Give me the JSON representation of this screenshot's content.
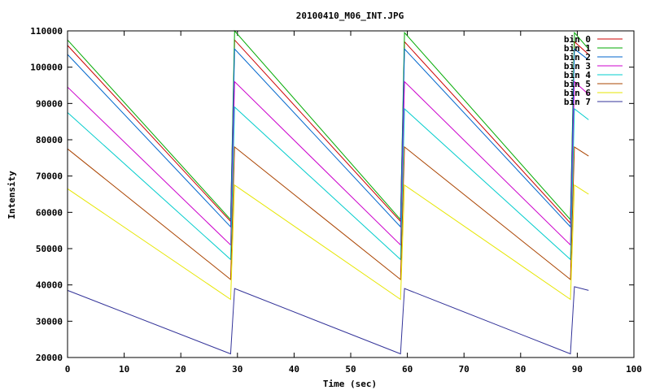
{
  "chart_data": {
    "type": "line",
    "title": "20100410_M06_INT.JPG",
    "xlabel": "Time (sec)",
    "ylabel": "Intensity",
    "xlim": [
      0,
      100
    ],
    "ylim": [
      20000,
      110000
    ],
    "xticks": [
      0,
      10,
      20,
      30,
      40,
      50,
      60,
      70,
      80,
      90,
      100
    ],
    "yticks": [
      20000,
      30000,
      40000,
      50000,
      60000,
      70000,
      80000,
      90000,
      100000,
      110000
    ],
    "xtick_labels": [
      "0",
      "10",
      "20",
      "30",
      "40",
      "50",
      "60",
      "70",
      "80",
      "90",
      "100"
    ],
    "ytick_labels": [
      "20000",
      "30000",
      "40000",
      "50000",
      "60000",
      "70000",
      "80000",
      "90000",
      "100000",
      "110000"
    ],
    "grid": false,
    "legend_position": "top-right",
    "series": [
      {
        "name": "bin 0",
        "color": "#cc0000",
        "x": [
          0,
          28.8,
          29.5,
          58.8,
          59.5,
          88.8,
          89.5,
          92
        ],
        "y": [
          106000,
          57500,
          107500,
          57500,
          107000,
          57000,
          107000,
          103500
        ]
      },
      {
        "name": "bin 1",
        "color": "#00aa00",
        "x": [
          0,
          28.8,
          29.5,
          58.8,
          59.5,
          88.8,
          89.5,
          92
        ],
        "y": [
          107500,
          58000,
          110000,
          58000,
          109500,
          58000,
          109500,
          105000
        ]
      },
      {
        "name": "bin 2",
        "color": "#0066cc",
        "x": [
          0,
          28.8,
          29.5,
          58.8,
          59.5,
          88.8,
          89.5,
          92
        ],
        "y": [
          103500,
          56000,
          105000,
          56000,
          105000,
          56000,
          105000,
          102000
        ]
      },
      {
        "name": "bin 3",
        "color": "#cc00cc",
        "x": [
          0,
          28.8,
          29.5,
          58.8,
          59.5,
          88.8,
          89.5,
          92
        ],
        "y": [
          94500,
          51000,
          96000,
          51000,
          96000,
          51000,
          96000,
          92500
        ]
      },
      {
        "name": "bin 4",
        "color": "#00cccc",
        "x": [
          0,
          28.8,
          29.5,
          58.8,
          59.5,
          88.8,
          89.5,
          92
        ],
        "y": [
          87500,
          47000,
          89000,
          47000,
          88500,
          47000,
          88500,
          85500
        ]
      },
      {
        "name": "bin 5",
        "color": "#aa4400",
        "x": [
          0,
          28.8,
          29.5,
          58.8,
          59.5,
          88.8,
          89.5,
          92
        ],
        "y": [
          77500,
          41500,
          78000,
          41500,
          78000,
          41500,
          78000,
          75500
        ]
      },
      {
        "name": "bin 6",
        "color": "#e6e600",
        "x": [
          0,
          28.8,
          29.5,
          58.8,
          59.5,
          88.8,
          89.5,
          92
        ],
        "y": [
          66500,
          36000,
          67500,
          36000,
          67500,
          36000,
          67500,
          65000
        ]
      },
      {
        "name": "bin 7",
        "color": "#333399",
        "x": [
          0,
          28.8,
          29.5,
          58.8,
          59.5,
          88.8,
          89.5,
          92
        ],
        "y": [
          38500,
          21000,
          39000,
          21000,
          39000,
          21000,
          39500,
          38500
        ]
      }
    ]
  }
}
